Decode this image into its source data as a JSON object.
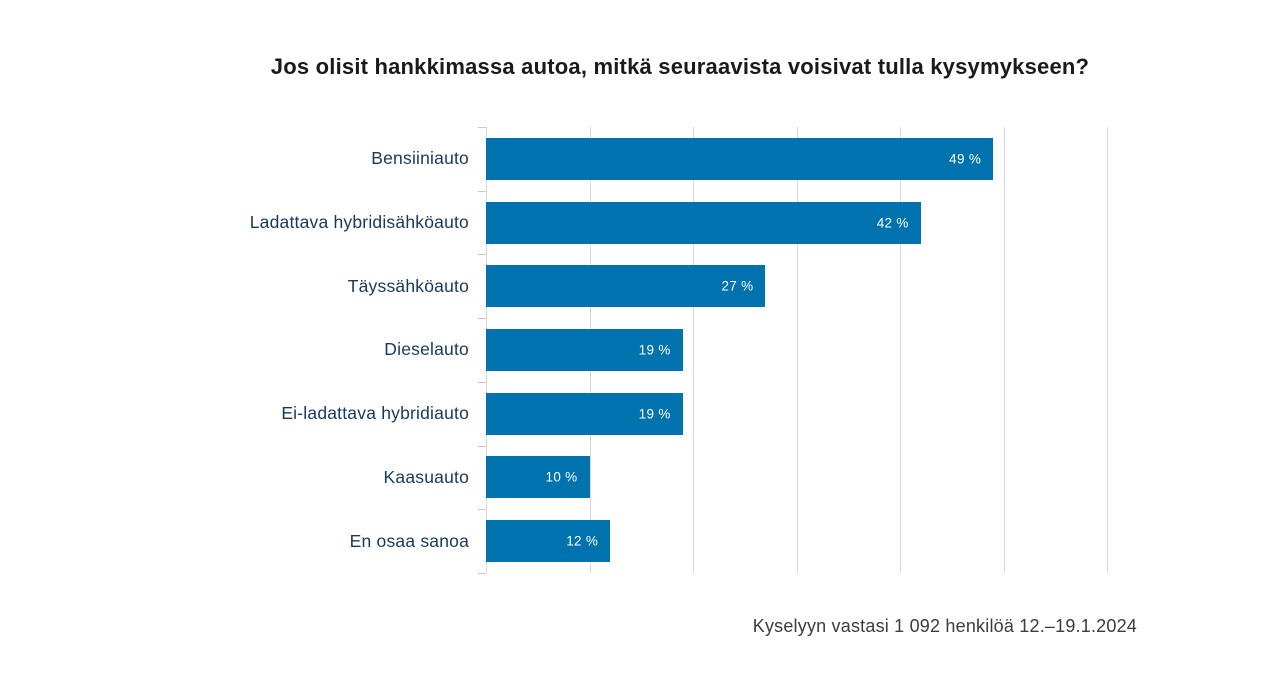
{
  "chart_data": {
    "type": "bar",
    "orientation": "horizontal",
    "title": "Jos olisit hankkimassa autoa, mitkä seuraavista voisivat tulla kysymykseen?",
    "categories": [
      "Bensiiniauto",
      "Ladattava hybridisähköauto",
      "Täyssähköauto",
      "Dieselauto",
      "Ei-ladattava hybridiauto",
      "Kaasuauto",
      "En osaa sanoa"
    ],
    "values": [
      49,
      42,
      27,
      19,
      19,
      10,
      12
    ],
    "value_labels": [
      "49 %",
      "42 %",
      "27 %",
      "19 %",
      "19 %",
      "10 %",
      "12 %"
    ],
    "xlabel": "",
    "ylabel": "",
    "xlim": [
      0,
      60
    ],
    "gridline_interval": 10,
    "grid": true,
    "legend": "none",
    "footnote": "Kyselyyn vastasi 1 092 henkilöä 12.–19.1.2024",
    "colors": {
      "bar": "#0072ad",
      "value_label": "#ffffff",
      "category_label": "#17395e",
      "title": "#1a1a1a",
      "footnote": "#3c3c3c",
      "gridline": "#d9d9d9",
      "tick": "#c9c9c9",
      "background": "#ffffff"
    }
  }
}
